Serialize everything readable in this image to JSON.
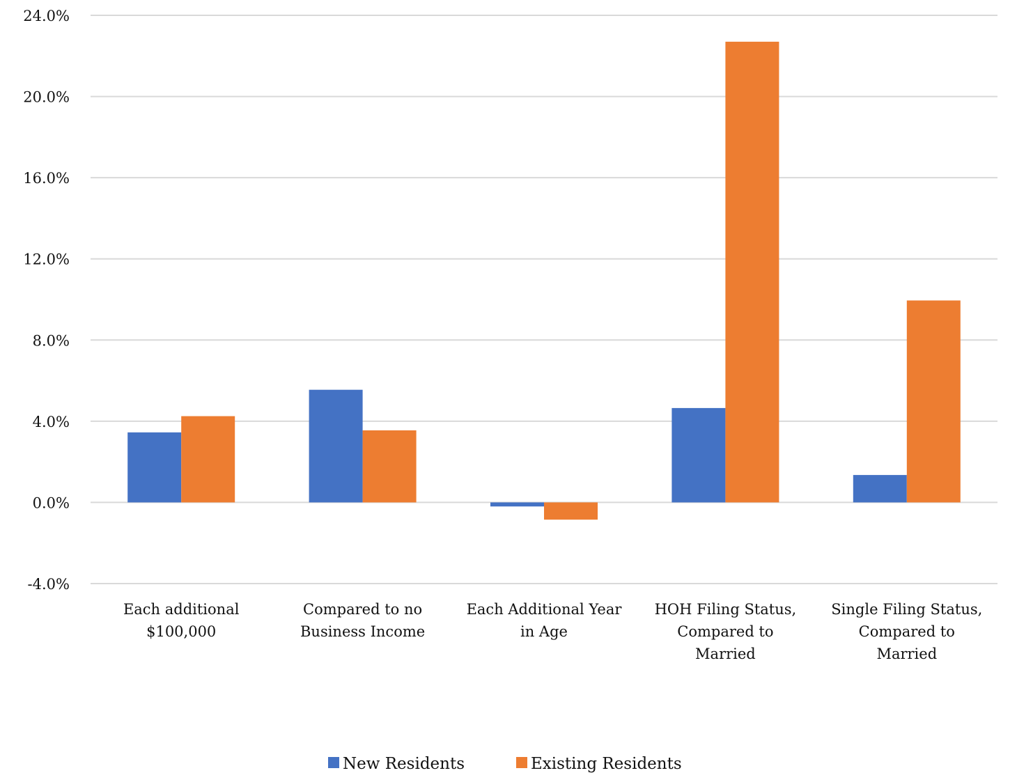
{
  "chart_data": {
    "type": "bar",
    "categories": [
      [
        "Each additional",
        "$100,000"
      ],
      [
        "Compared to no",
        "Business Income"
      ],
      [
        "Each Additional Year",
        "in Age"
      ],
      [
        "HOH Filing Status,",
        "Compared to",
        "Married"
      ],
      [
        "Single Filing Status,",
        "Compared to",
        "Married"
      ]
    ],
    "series": [
      {
        "name": "New Residents",
        "color": "#4472c4",
        "values": [
          3.45,
          5.55,
          -0.2,
          4.65,
          1.35
        ]
      },
      {
        "name": "Existing Residents",
        "color": "#ed7d31",
        "values": [
          4.25,
          3.55,
          -0.85,
          22.7,
          9.95
        ]
      }
    ],
    "yticks": [
      "24.0%",
      "20.0%",
      "16.0%",
      "12.0%",
      "8.0%",
      "4.0%",
      "0.0%",
      "-4.0%"
    ],
    "ylim": [
      -4,
      24
    ],
    "grid": true,
    "legend_position": "bottom-center",
    "title": "",
    "xlabel": "",
    "ylabel": ""
  }
}
